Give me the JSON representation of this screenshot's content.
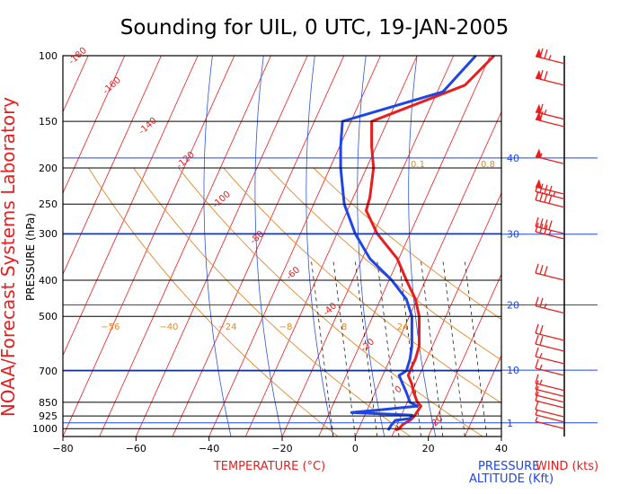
{
  "chart_data": {
    "type": "line",
    "title": "Sounding for UIL,  0 UTC, 19-JAN-2005",
    "side_label": "NOAA/Forecast Systems Laboratory",
    "xlabel": "TEMPERATURE (°C)",
    "ylabel": "PRESSURE (hPa)",
    "right_label_1": "PRESSURE",
    "right_label_2": "ALTITUDE (Kft)",
    "wind_label": "WIND (kts)",
    "xlim": [
      -80,
      40
    ],
    "ylim": [
      1050,
      100
    ],
    "x_ticks": [
      -80,
      -60,
      -40,
      -20,
      0,
      20,
      40
    ],
    "pressure_levels": [
      100,
      150,
      200,
      250,
      300,
      400,
      500,
      700,
      850,
      925,
      1000
    ],
    "altitude_levels": [
      {
        "label": "1",
        "p": 965
      },
      {
        "label": "10",
        "p": 697
      },
      {
        "label": "20",
        "p": 466
      },
      {
        "label": "30",
        "p": 301
      },
      {
        "label": "40",
        "p": 188
      }
    ],
    "isotherms": [
      -180,
      -160,
      -140,
      -120,
      -100,
      -80,
      -60,
      -40,
      -20,
      0,
      20
    ],
    "dry_adiabats": [
      -56,
      -40,
      -24,
      -8,
      8,
      24
    ],
    "mixing_ratio_labels": [
      "0.1",
      "0.8"
    ],
    "moist_labels": [
      "0",
      "-20",
      "-40",
      "-60",
      "-80",
      "-20",
      "0",
      "20"
    ],
    "series": [
      {
        "name": "temperature",
        "color": "#e81e1e",
        "points": [
          {
            "p": 1010,
            "t": 11.0
          },
          {
            "p": 1000,
            "t": 12.0
          },
          {
            "p": 975,
            "t": 13.0
          },
          {
            "p": 950,
            "t": 15.0
          },
          {
            "p": 930,
            "t": 16.0
          },
          {
            "p": 900,
            "t": 17.0
          },
          {
            "p": 870,
            "t": 18.0
          },
          {
            "p": 850,
            "t": 17.0
          },
          {
            "p": 800,
            "t": 16.0
          },
          {
            "p": 760,
            "t": 15.5
          },
          {
            "p": 720,
            "t": 14.5
          },
          {
            "p": 700,
            "t": 15.0
          },
          {
            "p": 650,
            "t": 16.5
          },
          {
            "p": 600,
            "t": 17.5
          },
          {
            "p": 550,
            "t": 17.5
          },
          {
            "p": 500,
            "t": 17.5
          },
          {
            "p": 450,
            "t": 16.5
          },
          {
            "p": 400,
            "t": 14.0
          },
          {
            "p": 350,
            "t": 11.5
          },
          {
            "p": 300,
            "t": 6.0
          },
          {
            "p": 260,
            "t": 3.0
          },
          {
            "p": 240,
            "t": 4.0
          },
          {
            "p": 200,
            "t": 5.0
          },
          {
            "p": 175,
            "t": 4.5
          },
          {
            "p": 150,
            "t": 4.5
          },
          {
            "p": 120,
            "t": 30.0
          },
          {
            "p": 100,
            "t": 38.0
          }
        ]
      },
      {
        "name": "dewpoint",
        "color": "#1e46e6",
        "points": [
          {
            "p": 1010,
            "t": 9.0
          },
          {
            "p": 975,
            "t": 10.0
          },
          {
            "p": 950,
            "t": 11.0
          },
          {
            "p": 940,
            "t": 15.0
          },
          {
            "p": 920,
            "t": 15.5
          },
          {
            "p": 905,
            "t": -1.0
          },
          {
            "p": 890,
            "t": 7.0
          },
          {
            "p": 870,
            "t": 17.0
          },
          {
            "p": 850,
            "t": 15.0
          },
          {
            "p": 800,
            "t": 14.0
          },
          {
            "p": 760,
            "t": 13.0
          },
          {
            "p": 720,
            "t": 12.0
          },
          {
            "p": 700,
            "t": 14.0
          },
          {
            "p": 650,
            "t": 15.0
          },
          {
            "p": 600,
            "t": 15.5
          },
          {
            "p": 550,
            "t": 15.5
          },
          {
            "p": 500,
            "t": 15.5
          },
          {
            "p": 450,
            "t": 14.0
          },
          {
            "p": 400,
            "t": 10.0
          },
          {
            "p": 350,
            "t": 4.0
          },
          {
            "p": 300,
            "t": 0.0
          },
          {
            "p": 250,
            "t": -3.0
          },
          {
            "p": 200,
            "t": -4.0
          },
          {
            "p": 175,
            "t": -4.0
          },
          {
            "p": 150,
            "t": -3.5
          },
          {
            "p": 125,
            "t": 24.0
          },
          {
            "p": 100,
            "t": 33.0
          }
        ]
      }
    ],
    "wind_barbs": [
      {
        "p": 105,
        "speed": 75
      },
      {
        "p": 120,
        "speed": 70
      },
      {
        "p": 148,
        "speed": 65
      },
      {
        "p": 155,
        "speed": 60
      },
      {
        "p": 195,
        "speed": 55
      },
      {
        "p": 235,
        "speed": 50
      },
      {
        "p": 242,
        "speed": 45
      },
      {
        "p": 255,
        "speed": 40
      },
      {
        "p": 300,
        "speed": 40
      },
      {
        "p": 310,
        "speed": 35
      },
      {
        "p": 400,
        "speed": 30
      },
      {
        "p": 490,
        "speed": 25
      },
      {
        "p": 580,
        "speed": 20
      },
      {
        "p": 620,
        "speed": 20
      },
      {
        "p": 670,
        "speed": 15
      },
      {
        "p": 720,
        "speed": 15
      },
      {
        "p": 790,
        "speed": 15
      },
      {
        "p": 820,
        "speed": 10
      },
      {
        "p": 850,
        "speed": 10
      },
      {
        "p": 880,
        "speed": 10
      },
      {
        "p": 930,
        "speed": 10
      },
      {
        "p": 960,
        "speed": 5
      },
      {
        "p": 1000,
        "speed": 5
      }
    ]
  }
}
